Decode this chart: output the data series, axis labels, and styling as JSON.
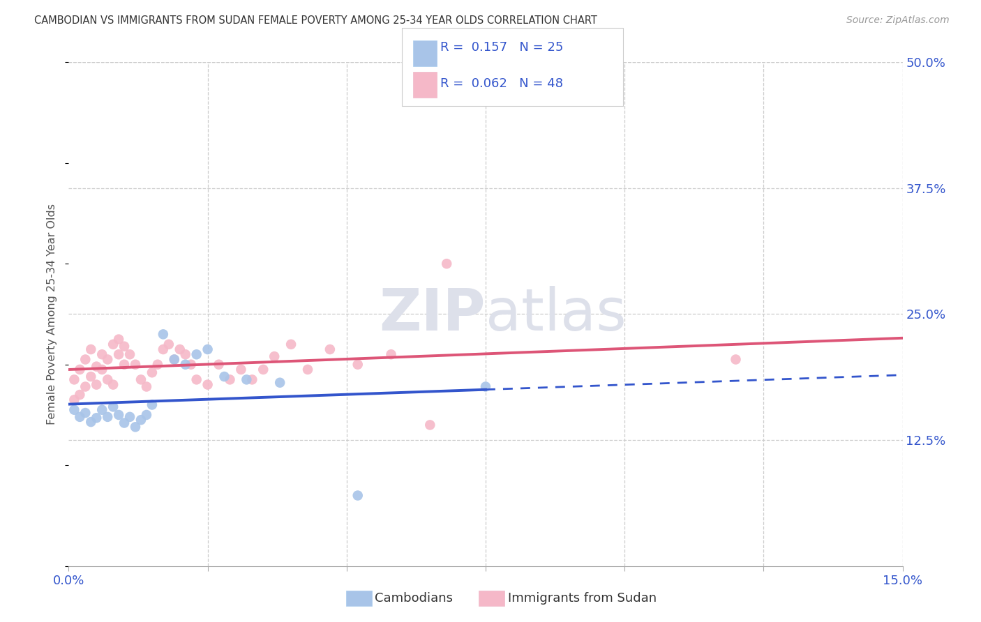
{
  "title": "CAMBODIAN VS IMMIGRANTS FROM SUDAN FEMALE POVERTY AMONG 25-34 YEAR OLDS CORRELATION CHART",
  "source": "Source: ZipAtlas.com",
  "ylabel": "Female Poverty Among 25-34 Year Olds",
  "xlim": [
    0.0,
    0.15
  ],
  "ylim": [
    0.0,
    0.5
  ],
  "xtick_positions": [
    0.0,
    0.025,
    0.05,
    0.075,
    0.1,
    0.125,
    0.15
  ],
  "xtick_labels": [
    "0.0%",
    "",
    "",
    "",
    "",
    "",
    "15.0%"
  ],
  "ytick_right_positions": [
    0.125,
    0.25,
    0.375,
    0.5
  ],
  "ytick_right_labels": [
    "12.5%",
    "25.0%",
    "37.5%",
    "50.0%"
  ],
  "grid_color": "#cccccc",
  "background_color": "#ffffff",
  "cambodian_color": "#a8c4e8",
  "sudan_color": "#f5b8c8",
  "cambodian_line_color": "#3355cc",
  "sudan_line_color": "#dd5577",
  "R_cambodian": 0.157,
  "N_cambodian": 25,
  "R_sudan": 0.062,
  "N_sudan": 48,
  "watermark_zip": "ZIP",
  "watermark_atlas": "atlas",
  "cambodian_x": [
    0.001,
    0.002,
    0.003,
    0.004,
    0.005,
    0.006,
    0.007,
    0.008,
    0.009,
    0.01,
    0.011,
    0.012,
    0.013,
    0.014,
    0.015,
    0.017,
    0.019,
    0.021,
    0.023,
    0.025,
    0.028,
    0.032,
    0.038,
    0.052,
    0.075
  ],
  "cambodian_y": [
    0.155,
    0.148,
    0.152,
    0.143,
    0.147,
    0.155,
    0.148,
    0.158,
    0.15,
    0.142,
    0.148,
    0.138,
    0.145,
    0.15,
    0.16,
    0.23,
    0.205,
    0.2,
    0.21,
    0.215,
    0.188,
    0.185,
    0.182,
    0.07,
    0.178
  ],
  "sudan_x": [
    0.001,
    0.001,
    0.002,
    0.002,
    0.003,
    0.003,
    0.004,
    0.004,
    0.005,
    0.005,
    0.006,
    0.006,
    0.007,
    0.007,
    0.008,
    0.008,
    0.009,
    0.009,
    0.01,
    0.01,
    0.011,
    0.012,
    0.013,
    0.014,
    0.015,
    0.016,
    0.017,
    0.018,
    0.019,
    0.02,
    0.021,
    0.022,
    0.023,
    0.025,
    0.027,
    0.029,
    0.031,
    0.033,
    0.035,
    0.037,
    0.04,
    0.043,
    0.047,
    0.052,
    0.058,
    0.065,
    0.12,
    0.068
  ],
  "sudan_y": [
    0.165,
    0.185,
    0.195,
    0.17,
    0.205,
    0.178,
    0.188,
    0.215,
    0.198,
    0.18,
    0.21,
    0.195,
    0.205,
    0.185,
    0.22,
    0.18,
    0.21,
    0.225,
    0.2,
    0.218,
    0.21,
    0.2,
    0.185,
    0.178,
    0.192,
    0.2,
    0.215,
    0.22,
    0.205,
    0.215,
    0.21,
    0.2,
    0.185,
    0.18,
    0.2,
    0.185,
    0.195,
    0.185,
    0.195,
    0.208,
    0.22,
    0.195,
    0.215,
    0.2,
    0.21,
    0.14,
    0.205,
    0.3
  ]
}
